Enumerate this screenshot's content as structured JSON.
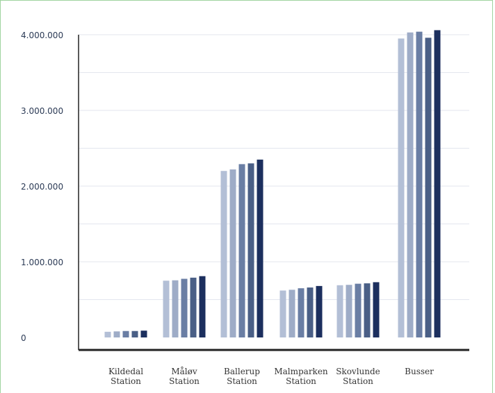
{
  "chart_data": {
    "type": "bar",
    "title": "",
    "xlabel": "",
    "ylabel": "",
    "ylim": [
      0,
      4000000
    ],
    "yticks": [
      {
        "value": 0,
        "label": "0"
      },
      {
        "value": 1000000,
        "label": "1.000.000"
      },
      {
        "value": 2000000,
        "label": "2.000.000"
      },
      {
        "value": 3000000,
        "label": "3.000.000"
      },
      {
        "value": 4000000,
        "label": "4.000.000"
      }
    ],
    "grid": true,
    "legend": "none",
    "categories": [
      [
        "Kildedal",
        "Station"
      ],
      [
        "Måløv",
        "Station"
      ],
      [
        "Ballerup",
        "Station"
      ],
      [
        "Malmparken",
        "Station"
      ],
      [
        "Skovlunde",
        "Station"
      ],
      [
        "Busser"
      ]
    ],
    "series": [
      {
        "color": "#b3bfd6",
        "values": [
          75000,
          750000,
          2200000,
          620000,
          690000,
          3950000
        ]
      },
      {
        "color": "#9eacc7",
        "values": [
          80000,
          755000,
          2220000,
          630000,
          695000,
          4030000
        ]
      },
      {
        "color": "#6a7ea4",
        "values": [
          85000,
          775000,
          2290000,
          650000,
          710000,
          4040000
        ]
      },
      {
        "color": "#4a5f86",
        "values": [
          85000,
          790000,
          2300000,
          660000,
          715000,
          3960000
        ]
      },
      {
        "color": "#1c2f5e",
        "values": [
          90000,
          810000,
          2350000,
          680000,
          730000,
          4060000
        ]
      }
    ]
  }
}
